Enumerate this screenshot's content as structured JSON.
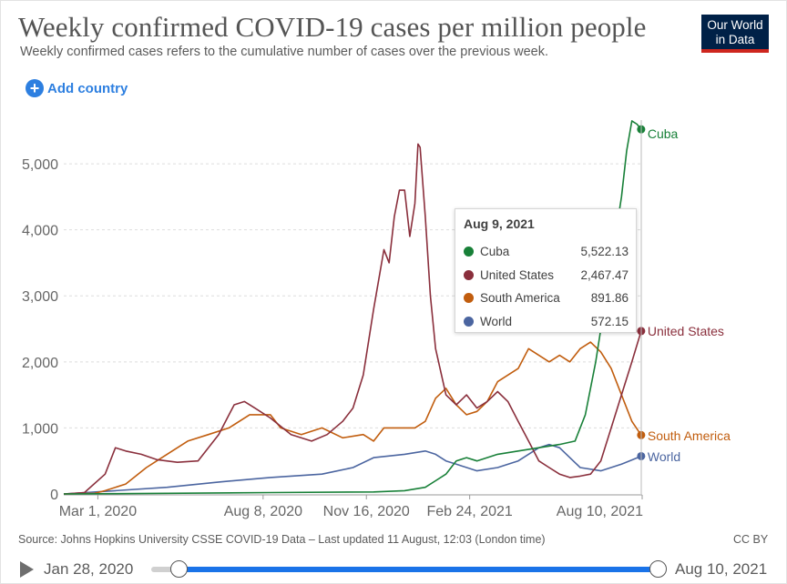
{
  "title": "Weekly confirmed COVID-19 cases per million people",
  "subtitle": "Weekly confirmed cases refers to the cumulative number of cases over the previous week.",
  "logo": {
    "line1": "Our World",
    "line2": "in Data"
  },
  "add_country_label": "Add country",
  "tooltip": {
    "date": "Aug 9, 2021",
    "rows": [
      {
        "name": "Cuba",
        "value": "5,522.13",
        "color": "#188038"
      },
      {
        "name": "United States",
        "value": "2,467.47",
        "color": "#8a2f3c"
      },
      {
        "name": "South America",
        "value": "891.86",
        "color": "#c15d0e"
      },
      {
        "name": "World",
        "value": "572.15",
        "color": "#4b65a0"
      }
    ]
  },
  "source": "Source: Johns Hopkins University CSSE COVID-19 Data – Last updated 11 August, 12:03 (London time)",
  "license": "CC BY",
  "timeline": {
    "start": "Jan 28, 2020",
    "end": "Aug 10, 2021",
    "start_fraction": 0.0,
    "end_fraction": 1.0
  },
  "chart_data": {
    "type": "line",
    "title": "Weekly confirmed COVID-19 cases per million people",
    "xlabel": "",
    "ylabel": "",
    "x_unit": "days since Jan 28, 2020",
    "xlim": [
      0,
      560
    ],
    "ylim": [
      0,
      5800
    ],
    "yticks": [
      0,
      1000,
      2000,
      3000,
      4000,
      5000
    ],
    "ytick_labels": [
      "0",
      "1,000",
      "2,000",
      "3,000",
      "4,000",
      "5,000"
    ],
    "xticks": [
      {
        "day": 33,
        "label": "Mar 1, 2020"
      },
      {
        "day": 193,
        "label": "Aug 8, 2020"
      },
      {
        "day": 293,
        "label": "Nov 16, 2020"
      },
      {
        "day": 393,
        "label": "Feb 24, 2021"
      },
      {
        "day": 560,
        "label": "Aug 10, 2021"
      }
    ],
    "grid": true,
    "series": [
      {
        "name": "United States",
        "color": "#8a2f3c",
        "x": [
          0,
          20,
          40,
          50,
          60,
          75,
          90,
          110,
          130,
          150,
          165,
          175,
          185,
          200,
          220,
          240,
          255,
          270,
          280,
          290,
          300,
          310,
          315,
          320,
          325,
          330,
          335,
          340,
          343,
          345,
          350,
          355,
          360,
          370,
          380,
          390,
          400,
          410,
          420,
          430,
          440,
          450,
          460,
          470,
          480,
          490,
          500,
          510,
          520,
          530,
          540,
          550,
          559
        ],
        "y": [
          0,
          20,
          300,
          700,
          650,
          600,
          520,
          480,
          500,
          900,
          1350,
          1400,
          1300,
          1150,
          900,
          800,
          900,
          1100,
          1300,
          1800,
          2800,
          3700,
          3500,
          4200,
          4600,
          4600,
          3900,
          4400,
          5300,
          5250,
          4200,
          3000,
          2200,
          1500,
          1350,
          1500,
          1300,
          1400,
          1550,
          1400,
          1100,
          800,
          500,
          400,
          300,
          250,
          270,
          300,
          500,
          1000,
          1500,
          2000,
          2467.47
        ]
      },
      {
        "name": "South America",
        "color": "#c15d0e",
        "x": [
          0,
          30,
          40,
          60,
          80,
          100,
          120,
          140,
          160,
          180,
          200,
          210,
          230,
          250,
          270,
          290,
          300,
          310,
          320,
          330,
          340,
          350,
          360,
          370,
          380,
          390,
          400,
          410,
          420,
          430,
          440,
          450,
          460,
          470,
          480,
          490,
          500,
          510,
          520,
          530,
          540,
          550,
          559
        ],
        "y": [
          0,
          10,
          50,
          150,
          400,
          600,
          800,
          900,
          1000,
          1200,
          1200,
          1000,
          900,
          1000,
          850,
          900,
          800,
          1000,
          1000,
          1000,
          1000,
          1100,
          1450,
          1600,
          1350,
          1200,
          1250,
          1400,
          1700,
          1800,
          1900,
          2200,
          2100,
          2000,
          2100,
          2000,
          2200,
          2300,
          2150,
          1900,
          1500,
          1100,
          891.86
        ]
      },
      {
        "name": "World",
        "color": "#4b65a0",
        "x": [
          0,
          50,
          100,
          150,
          200,
          250,
          280,
          300,
          330,
          350,
          360,
          370,
          380,
          400,
          420,
          440,
          460,
          470,
          480,
          490,
          500,
          520,
          540,
          559
        ],
        "y": [
          0,
          50,
          100,
          180,
          250,
          300,
          400,
          550,
          600,
          650,
          600,
          500,
          450,
          350,
          400,
          500,
          700,
          750,
          700,
          550,
          400,
          350,
          450,
          572.15
        ]
      },
      {
        "name": "Cuba",
        "color": "#188038",
        "x": [
          0,
          100,
          200,
          300,
          330,
          350,
          360,
          370,
          380,
          390,
          400,
          420,
          440,
          460,
          480,
          495,
          505,
          515,
          525,
          535,
          540,
          545,
          550,
          555,
          559
        ],
        "y": [
          0,
          10,
          20,
          30,
          50,
          100,
          200,
          300,
          500,
          550,
          500,
          600,
          650,
          700,
          750,
          800,
          1200,
          2000,
          3000,
          4000,
          4500,
          5200,
          5650,
          5600,
          5522.13
        ]
      }
    ]
  }
}
